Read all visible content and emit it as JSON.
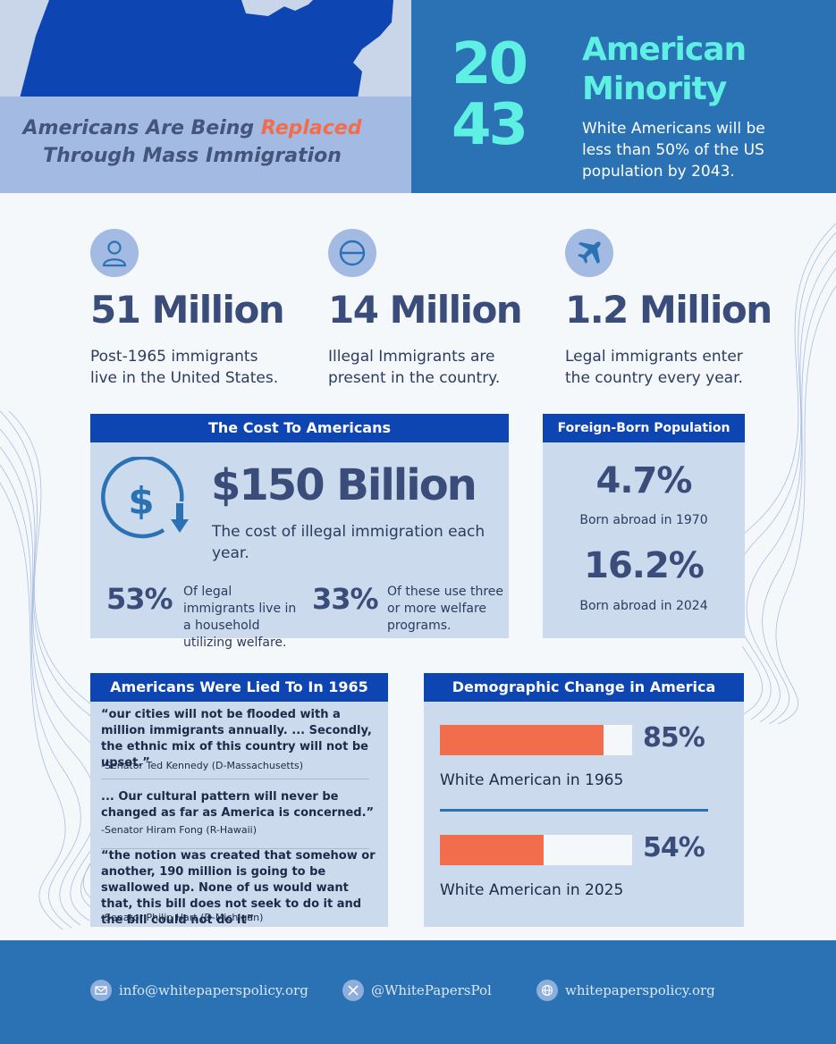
{
  "header": {
    "title_line1_prefix": "Americans Are Being ",
    "title_line1_accent": "Replaced",
    "title_line2": "Through Mass Immigration",
    "year_top": "20",
    "year_bottom": "43",
    "minority_title_1": "American",
    "minority_title_2": "Minority",
    "minority_desc": "White Americans will be less than 50% of the US population by 2043."
  },
  "stats": [
    {
      "icon": "person-icon",
      "value": "51 Million",
      "desc": "Post-1965 immigrants live in the United States."
    },
    {
      "icon": "no-entry-icon",
      "value": "14 Million",
      "desc": "Illegal Immigrants are present in the country."
    },
    {
      "icon": "airplane-icon",
      "value": "1.2 Million",
      "desc": "Legal immigrants enter the country every year."
    }
  ],
  "cost": {
    "heading": "The Cost To Americans",
    "icon": "dollar-cycle-icon",
    "amount": "$150 Billion",
    "desc": "The cost of illegal immigration each year.",
    "pct1": "53%",
    "pct1_desc": "Of legal immigrants live in a household utilizing welfare.",
    "pct2": "33%",
    "pct2_desc": "Of these use three or more welfare programs."
  },
  "foreign_born": {
    "heading": "Foreign-Born Population",
    "value1": "4.7%",
    "label1": "Born abroad in 1970",
    "value2": "16.2%",
    "label2": "Born abroad in 2024"
  },
  "lied": {
    "heading": "Americans Were Lied To In 1965",
    "quotes": [
      {
        "text": "“our cities will not be flooded with a million immigrants annually. ... Secondly, the ethnic mix of this country will not be upset.”",
        "attrib": "-Senator Ted Kennedy (D-Massachusetts)"
      },
      {
        "text": " ... Our cultural pattern will never be changed as far as America is concerned.”",
        "attrib": "-Senator Hiram Fong (R-Hawaii)"
      },
      {
        "text": " “the notion was created that somehow or another, 190 million is going to be swallowed up. None of us would want that, this bill does not seek to do it and the bill could not do it”",
        "attrib": "-Senator Philip Hart (D-Michigan)"
      }
    ]
  },
  "demographic": {
    "heading": "Demographic Change in America",
    "bars": [
      {
        "pct_label": "85%",
        "value": 0.85,
        "label": "White American in 1965"
      },
      {
        "pct_label": "54%",
        "value": 0.54,
        "label": "White American in 2025"
      }
    ]
  },
  "footer": {
    "email": "info@whitepaperspolicy.org",
    "twitter": "@WhitePapersPol",
    "website": "whitepaperspolicy.org"
  },
  "colors": {
    "accent": "#f26d4b",
    "navy_header": "#0d45b3",
    "blue": "#2b72b5",
    "cyan": "#5ff0e4",
    "panel": "#cbdaec"
  }
}
